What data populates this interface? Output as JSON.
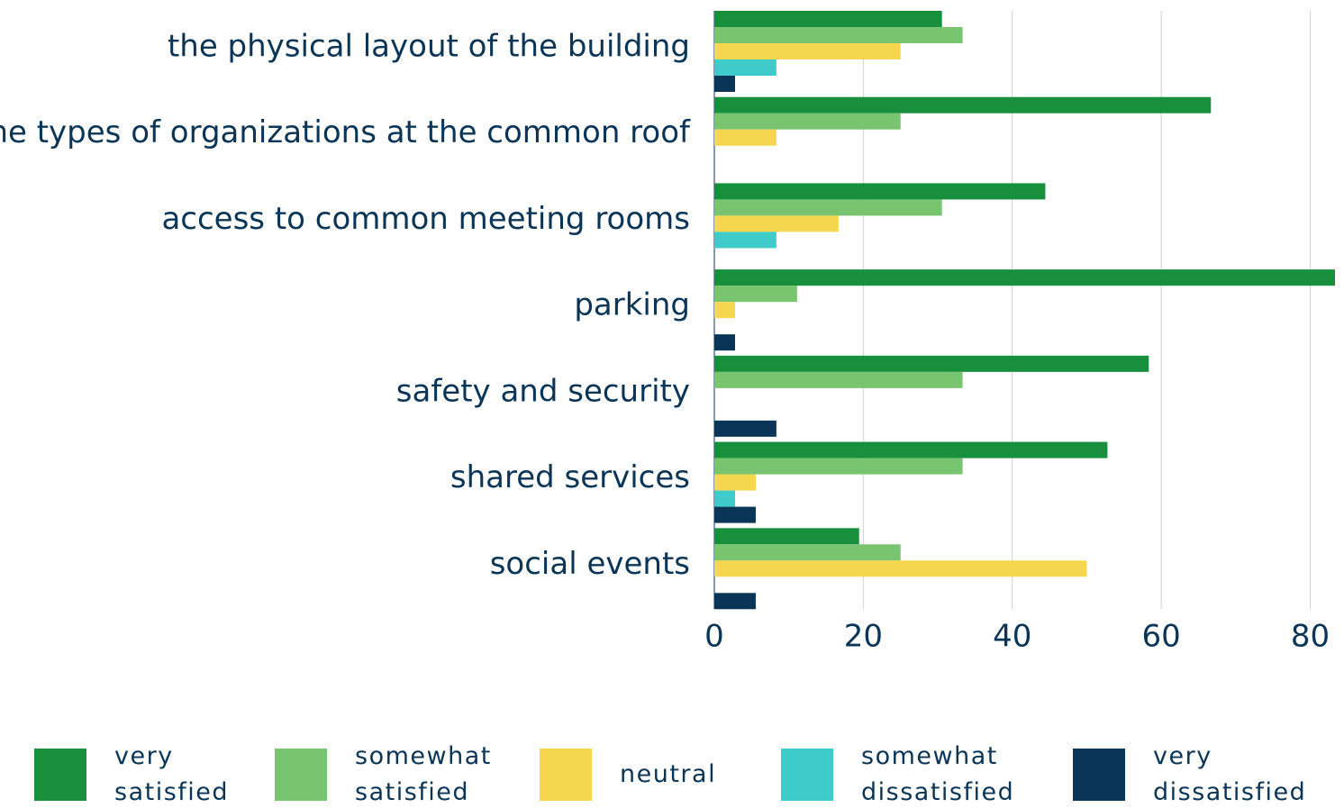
{
  "chart_data": {
    "type": "barh",
    "categories": [
      "the physical layout of the building",
      "the types of organizations at the common roof",
      "access to common meeting rooms",
      "parking",
      "safety and security",
      "shared services",
      "social events"
    ],
    "series": [
      {
        "name": "very satisfied",
        "color": "#178f3c",
        "values": [
          30.56,
          66.67,
          44.44,
          83.33,
          58.33,
          52.78,
          19.44
        ]
      },
      {
        "name": "somewhat satisfied",
        "color": "#79c471",
        "values": [
          33.33,
          25,
          30.56,
          11.11,
          33.33,
          33.33,
          25
        ]
      },
      {
        "name": "neutral",
        "color": "#f5d64e",
        "values": [
          25,
          8.33,
          16.67,
          2.78,
          0,
          5.56,
          50
        ]
      },
      {
        "name": "somewhat dissatisfied",
        "color": "#3ecbc9",
        "values": [
          8.33,
          0,
          8.33,
          0,
          0,
          2.78,
          0
        ]
      },
      {
        "name": "very dissatisfied",
        "color": "#0a3556",
        "values": [
          2.78,
          0,
          0,
          2.78,
          8.33,
          5.56,
          5.56
        ]
      }
    ],
    "xlim": [
      0,
      83.33
    ],
    "xticks": [
      0,
      20,
      40,
      60,
      80
    ],
    "grid": true,
    "legend": "bottom"
  }
}
